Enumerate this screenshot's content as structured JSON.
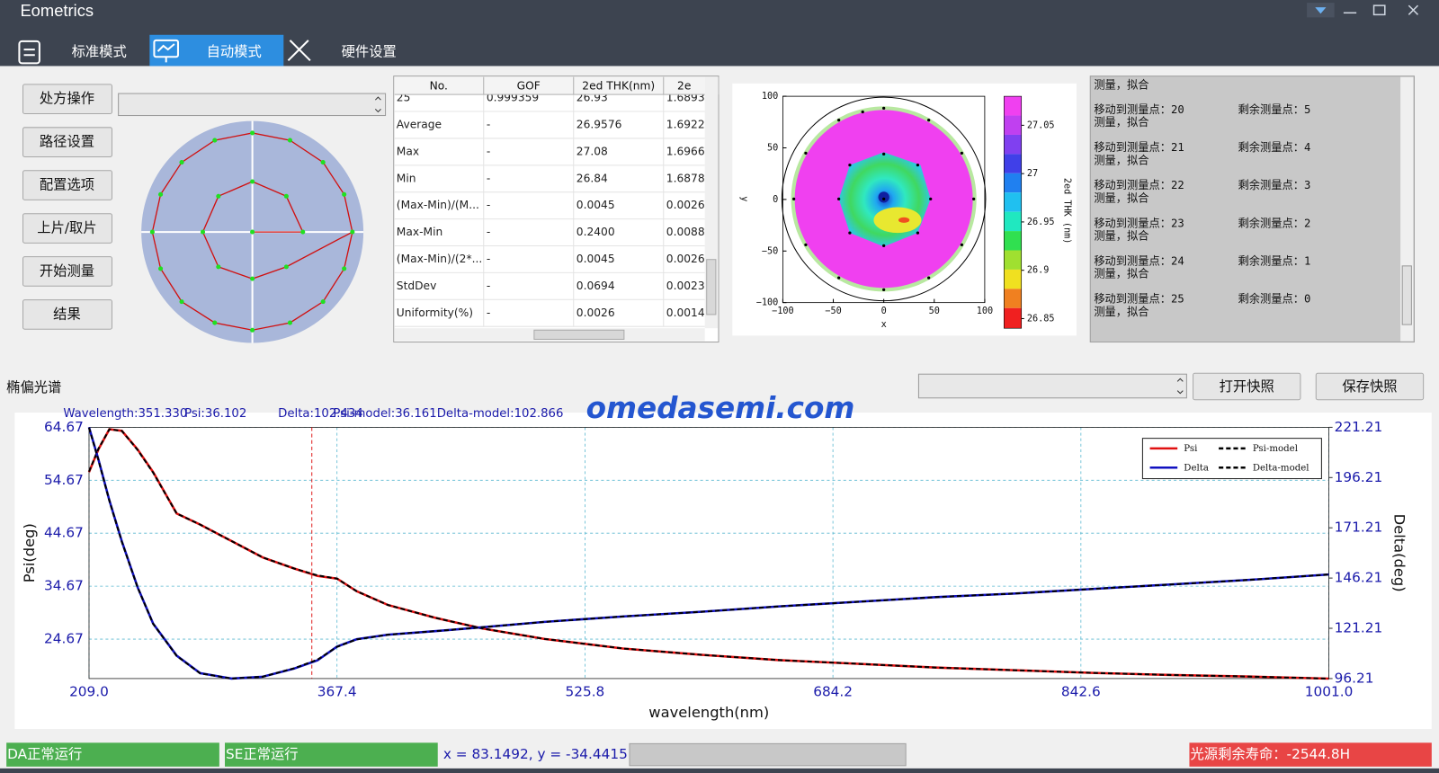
{
  "window": {
    "title": "Eometrics"
  },
  "tabs": [
    "标准模式",
    "自动模式",
    "硬件设置"
  ],
  "side_buttons": [
    "处方操作",
    "路径设置",
    "配置选项",
    "上片/取片",
    "开始测量",
    "结果"
  ],
  "results_table": {
    "headers": [
      "No.",
      "GOF",
      "2ed THK(nm)",
      "2e"
    ],
    "rows": [
      [
        "25",
        "0.999359",
        "26.93",
        "1.6893"
      ],
      [
        "Average",
        "-",
        "26.9576",
        "1.6922"
      ],
      [
        "Max",
        "-",
        "27.08",
        "1.6966"
      ],
      [
        "Min",
        "-",
        "26.84",
        "1.6878"
      ],
      [
        "(Max-Min)/(M...",
        "-",
        "0.0045",
        "0.0026"
      ],
      [
        "Max-Min",
        "-",
        "0.2400",
        "0.0088"
      ],
      [
        "(Max-Min)/(2*...",
        "-",
        "0.0045",
        "0.0026"
      ],
      [
        "StdDev",
        "-",
        "0.0694",
        "0.0023"
      ],
      [
        "Uniformity(%)",
        "-",
        "0.0026",
        "0.0014"
      ]
    ]
  },
  "log": {
    "partial": "测量，拟合",
    "entries": [
      {
        "move": "移动到测量点：20",
        "remain": "剩余测量点：5",
        "status": "测量，拟合"
      },
      {
        "move": "移动到测量点：21",
        "remain": "剩余测量点：4",
        "status": "测量，拟合"
      },
      {
        "move": "移动到测量点：22",
        "remain": "剩余测量点：3",
        "status": "测量，拟合"
      },
      {
        "move": "移动到测量点：23",
        "remain": "剩余测量点：2",
        "status": "测量，拟合"
      },
      {
        "move": "移动到测量点：24",
        "remain": "剩余测量点：1",
        "status": "测量，拟合"
      },
      {
        "move": "移动到测量点：25",
        "remain": "剩余测量点：0",
        "status": "测量，拟合"
      }
    ]
  },
  "spectrum": {
    "title": "椭偏光谱",
    "buttons": [
      "打开快照",
      "保存快照"
    ]
  },
  "watermark": "omedasemi.com",
  "status": {
    "da": "DA正常运行",
    "se": "SE正常运行",
    "coords": "x = 83.1492, y = -34.4415",
    "lamp": "光源剩余寿命：-2544.8H"
  },
  "chart_data": [
    {
      "type": "line",
      "x_label": "wavelength(nm)",
      "y_label": "Psi(deg)",
      "y2_label": "Delta(deg)",
      "x": [
        209,
        215,
        222,
        230,
        240,
        250,
        265,
        280,
        300,
        320,
        340,
        355,
        367.4,
        380,
        400,
        430,
        460,
        500,
        550,
        600,
        650,
        700,
        750,
        800,
        850,
        900,
        950,
        1001
      ],
      "xlim": [
        209,
        1001
      ],
      "xticks": [
        {
          "value": 209,
          "label": "209.0"
        },
        367.4,
        525.8,
        684.2,
        842.6,
        {
          "value": 1001,
          "label": "1001.0"
        }
      ],
      "ylim": [
        17.22,
        64.67
      ],
      "yticks": [
        24.67,
        34.67,
        44.67,
        54.67,
        64.67
      ],
      "y2lim": [
        96.21,
        221.21
      ],
      "y2ticks": [
        96.21,
        121.21,
        146.21,
        171.21,
        196.21,
        221.21
      ],
      "grid": true,
      "legend": "top-right",
      "cursor": {
        "value": 351.33,
        "label": "Wavelength:351.330"
      },
      "readout": [
        "Psi:36.102",
        "Delta:102.434",
        "Psi-model:36.161",
        "Delta-model:102.866"
      ],
      "series": [
        {
          "name": "Psi",
          "color": "#e01010",
          "style": "solid",
          "values": [
            56.2,
            60.5,
            64.3,
            64.0,
            60.5,
            56.2,
            48.4,
            46.3,
            43.2,
            40.1,
            38.0,
            36.6,
            36.1,
            33.7,
            31.1,
            28.7,
            26.7,
            24.7,
            22.9,
            21.7,
            20.7,
            20.0,
            19.3,
            18.8,
            18.3,
            17.9,
            17.6,
            17.2
          ]
        },
        {
          "name": "Psi-model",
          "color": "#000000",
          "style": "dashed",
          "values": [
            56.3,
            60.6,
            64.3,
            64.0,
            60.4,
            56.1,
            48.4,
            46.3,
            43.2,
            40.1,
            38.0,
            36.7,
            36.1,
            33.7,
            31.1,
            28.7,
            26.7,
            24.7,
            22.9,
            21.7,
            20.7,
            20.0,
            19.3,
            18.8,
            18.3,
            17.9,
            17.6,
            17.2
          ]
        },
        {
          "name": "Delta",
          "color": "#1010c0",
          "style": "solid",
          "axis": "y2",
          "values": [
            221.2,
            205.3,
            184.8,
            164.4,
            141.7,
            123.5,
            107.6,
            98.9,
            96.2,
            97.1,
            101.2,
            105.3,
            112.1,
            115.8,
            118.0,
            119.8,
            121.7,
            124.4,
            127.1,
            129.4,
            132.1,
            134.4,
            136.7,
            138.5,
            140.8,
            143.0,
            145.3,
            148.0
          ]
        },
        {
          "name": "Delta-model",
          "color": "#000000",
          "style": "dashed",
          "axis": "y2",
          "values": [
            221.0,
            205.0,
            184.6,
            164.2,
            141.6,
            123.4,
            107.5,
            98.8,
            96.2,
            97.1,
            101.3,
            105.6,
            112.0,
            115.7,
            118.0,
            119.8,
            121.7,
            124.4,
            127.1,
            129.4,
            132.1,
            134.4,
            136.7,
            138.5,
            140.8,
            143.0,
            145.3,
            148.0
          ]
        }
      ]
    },
    {
      "type": "heatmap",
      "x_label": "x",
      "y_label": "y",
      "colorbar_label": "2ed THK (nm)",
      "xlim": [
        -100,
        100
      ],
      "ylim": [
        -100,
        100
      ],
      "xticks": [
        {
          "value": -100,
          "label": "−100"
        },
        {
          "value": -50,
          "label": "−50"
        },
        0,
        50,
        100
      ],
      "yticks": [
        {
          "value": -100,
          "label": "−100"
        },
        {
          "value": -50,
          "label": "−50"
        },
        0,
        50,
        100
      ],
      "colorbar_lim": [
        26.84,
        27.08
      ],
      "colorbar_ticks": [
        26.85,
        26.9,
        26.95,
        27,
        27.05
      ]
    }
  ]
}
